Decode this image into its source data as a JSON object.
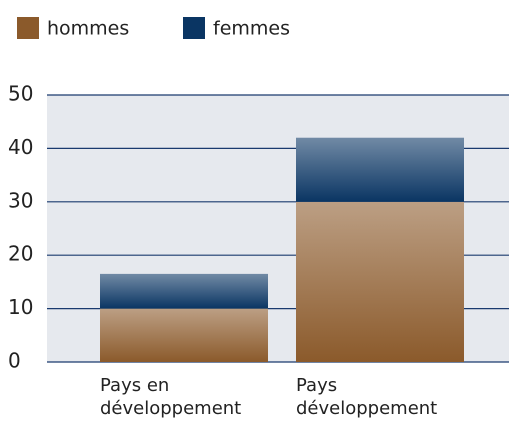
{
  "chart_data": {
    "type": "stacked_bar",
    "categories": [
      "Pays en développement",
      "Pays développement"
    ],
    "series": [
      {
        "name": "hommes",
        "color": "#8b5a2b",
        "values": [
          10,
          30
        ]
      },
      {
        "name": "femmes",
        "color": "#0a3563",
        "values": [
          6.5,
          12
        ]
      }
    ],
    "ylim": [
      0,
      50
    ],
    "yticks": [
      0,
      10,
      20,
      30,
      40,
      50
    ],
    "grid": true,
    "legend": "top-left"
  }
}
